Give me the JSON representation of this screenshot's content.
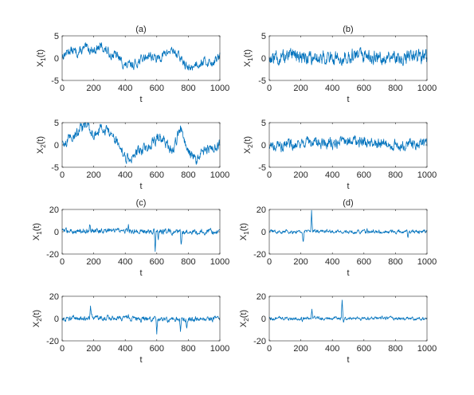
{
  "chart_data": [
    {
      "type": "line",
      "title": "(a)",
      "xlabel": "t",
      "ylabel": [
        "X",
        "1",
        "(t)"
      ],
      "xlim": [
        0,
        1000
      ],
      "ylim": [
        -5,
        5
      ],
      "xticks": [
        0,
        200,
        400,
        600,
        800,
        1000
      ],
      "yticks": [
        -5,
        0,
        5
      ],
      "series": [
        {
          "color": "#0072BD",
          "x": [
            0,
            50,
            100,
            150,
            200,
            250,
            300,
            350,
            400,
            450,
            500,
            550,
            600,
            650,
            700,
            750,
            800,
            850,
            900,
            950,
            1000
          ],
          "y": [
            0.5,
            1.8,
            1.2,
            2.2,
            1.8,
            2.6,
            1.0,
            0.5,
            -1.8,
            -1.5,
            -0.4,
            0.8,
            -0.3,
            0.9,
            1.9,
            0.0,
            -2.5,
            -1.2,
            -0.8,
            -1.0,
            0.3
          ],
          "noise": 0.8,
          "spikes": []
        }
      ]
    },
    {
      "type": "line",
      "title": "(b)",
      "xlabel": "t",
      "ylabel": [
        "X",
        "1",
        "(t)"
      ],
      "xlim": [
        0,
        1000
      ],
      "ylim": [
        -5,
        5
      ],
      "xticks": [
        0,
        200,
        400,
        600,
        800,
        1000
      ],
      "yticks": [
        -5,
        0,
        5
      ],
      "series": [
        {
          "color": "#0072BD",
          "x": [
            0,
            100,
            200,
            300,
            400,
            500,
            600,
            700,
            800,
            900,
            1000
          ],
          "y": [
            0.0,
            0.2,
            0.3,
            0.1,
            0.0,
            0.4,
            0.3,
            0.2,
            0.0,
            0.2,
            0.3
          ],
          "noise": 1.2,
          "spikes": []
        }
      ]
    },
    {
      "type": "line",
      "title": "",
      "xlabel": "t",
      "ylabel": [
        "X",
        "2",
        "(t)"
      ],
      "xlim": [
        0,
        1000
      ],
      "ylim": [
        -5,
        5
      ],
      "xticks": [
        0,
        200,
        400,
        600,
        800,
        1000
      ],
      "yticks": [
        -5,
        0,
        5
      ],
      "series": [
        {
          "color": "#0072BD",
          "x": [
            0,
            50,
            100,
            150,
            200,
            250,
            300,
            350,
            400,
            450,
            500,
            550,
            600,
            650,
            700,
            750,
            800,
            850,
            900,
            950,
            1000
          ],
          "y": [
            0.0,
            1.5,
            3.0,
            4.5,
            2.0,
            4.0,
            2.8,
            0.5,
            -3.2,
            -2.5,
            -1.2,
            -0.4,
            1.4,
            1.0,
            -1.8,
            4.2,
            -1.5,
            -3.5,
            -1.2,
            -0.5,
            0.0
          ],
          "noise": 0.9,
          "spikes": []
        }
      ]
    },
    {
      "type": "line",
      "title": "",
      "xlabel": "t",
      "ylabel": [
        "X",
        "2",
        "(t)"
      ],
      "xlim": [
        0,
        1000
      ],
      "ylim": [
        -5,
        5
      ],
      "xticks": [
        0,
        200,
        400,
        600,
        800,
        1000
      ],
      "yticks": [
        -5,
        0,
        5
      ],
      "series": [
        {
          "color": "#0072BD",
          "x": [
            0,
            100,
            200,
            300,
            400,
            500,
            600,
            700,
            800,
            900,
            1000
          ],
          "y": [
            -0.3,
            0.0,
            0.6,
            0.5,
            0.3,
            1.0,
            0.5,
            0.2,
            -0.3,
            0.3,
            0.2
          ],
          "noise": 1.0,
          "spikes": []
        }
      ]
    },
    {
      "type": "line",
      "title": "(c)",
      "xlabel": "t",
      "ylabel": [
        "X",
        "1",
        "(t)"
      ],
      "xlim": [
        0,
        1000
      ],
      "ylim": [
        -20,
        20
      ],
      "xticks": [
        0,
        200,
        400,
        600,
        800,
        1000
      ],
      "yticks": [
        -20,
        0,
        20
      ],
      "series": [
        {
          "color": "#0072BD",
          "x": [
            0,
            250,
            500,
            750,
            1000
          ],
          "y": [
            0.5,
            1.0,
            0.3,
            0.0,
            0.2
          ],
          "noise": 1.8,
          "spikes": [
            [
              175,
              10
            ],
            [
              590,
              -17
            ],
            [
              755,
              -14
            ],
            [
              610,
              -6
            ],
            [
              420,
              4
            ]
          ]
        }
      ]
    },
    {
      "type": "line",
      "title": "(d)",
      "xlabel": "t",
      "ylabel": [
        "X",
        "1",
        "(t)"
      ],
      "xlim": [
        0,
        1000
      ],
      "ylim": [
        -20,
        20
      ],
      "xticks": [
        0,
        200,
        400,
        600,
        800,
        1000
      ],
      "yticks": [
        -20,
        0,
        20
      ],
      "series": [
        {
          "color": "#0072BD",
          "x": [
            0,
            250,
            500,
            750,
            1000
          ],
          "y": [
            0.0,
            0.2,
            0.0,
            0.1,
            0.0
          ],
          "noise": 1.3,
          "spikes": [
            [
              268,
              18
            ],
            [
              215,
              -9
            ],
            [
              880,
              -6
            ],
            [
              620,
              4
            ]
          ]
        }
      ]
    },
    {
      "type": "line",
      "title": "",
      "xlabel": "t",
      "ylabel": [
        "X",
        "2",
        "(t)"
      ],
      "xlim": [
        0,
        1000
      ],
      "ylim": [
        -20,
        20
      ],
      "xticks": [
        0,
        200,
        400,
        600,
        800,
        1000
      ],
      "yticks": [
        -20,
        0,
        20
      ],
      "series": [
        {
          "color": "#0072BD",
          "x": [
            0,
            250,
            500,
            750,
            1000
          ],
          "y": [
            0.0,
            1.0,
            -0.5,
            -0.8,
            0.0
          ],
          "noise": 1.8,
          "spikes": [
            [
              180,
              9
            ],
            [
              600,
              -12
            ],
            [
              750,
              -10
            ],
            [
              790,
              -8
            ],
            [
              420,
              4
            ]
          ]
        }
      ]
    },
    {
      "type": "line",
      "title": "",
      "xlabel": "t",
      "ylabel": [
        "X",
        "2",
        "(t)"
      ],
      "xlim": [
        0,
        1000
      ],
      "ylim": [
        -20,
        20
      ],
      "xticks": [
        0,
        200,
        400,
        600,
        800,
        1000
      ],
      "yticks": [
        -20,
        0,
        20
      ],
      "series": [
        {
          "color": "#0072BD",
          "x": [
            0,
            250,
            500,
            750,
            1000
          ],
          "y": [
            0.0,
            0.2,
            0.0,
            0.1,
            0.0
          ],
          "noise": 1.2,
          "spikes": [
            [
              270,
              8
            ],
            [
              462,
              16
            ],
            [
              470,
              -3
            ],
            [
              210,
              -4
            ]
          ]
        }
      ]
    }
  ]
}
